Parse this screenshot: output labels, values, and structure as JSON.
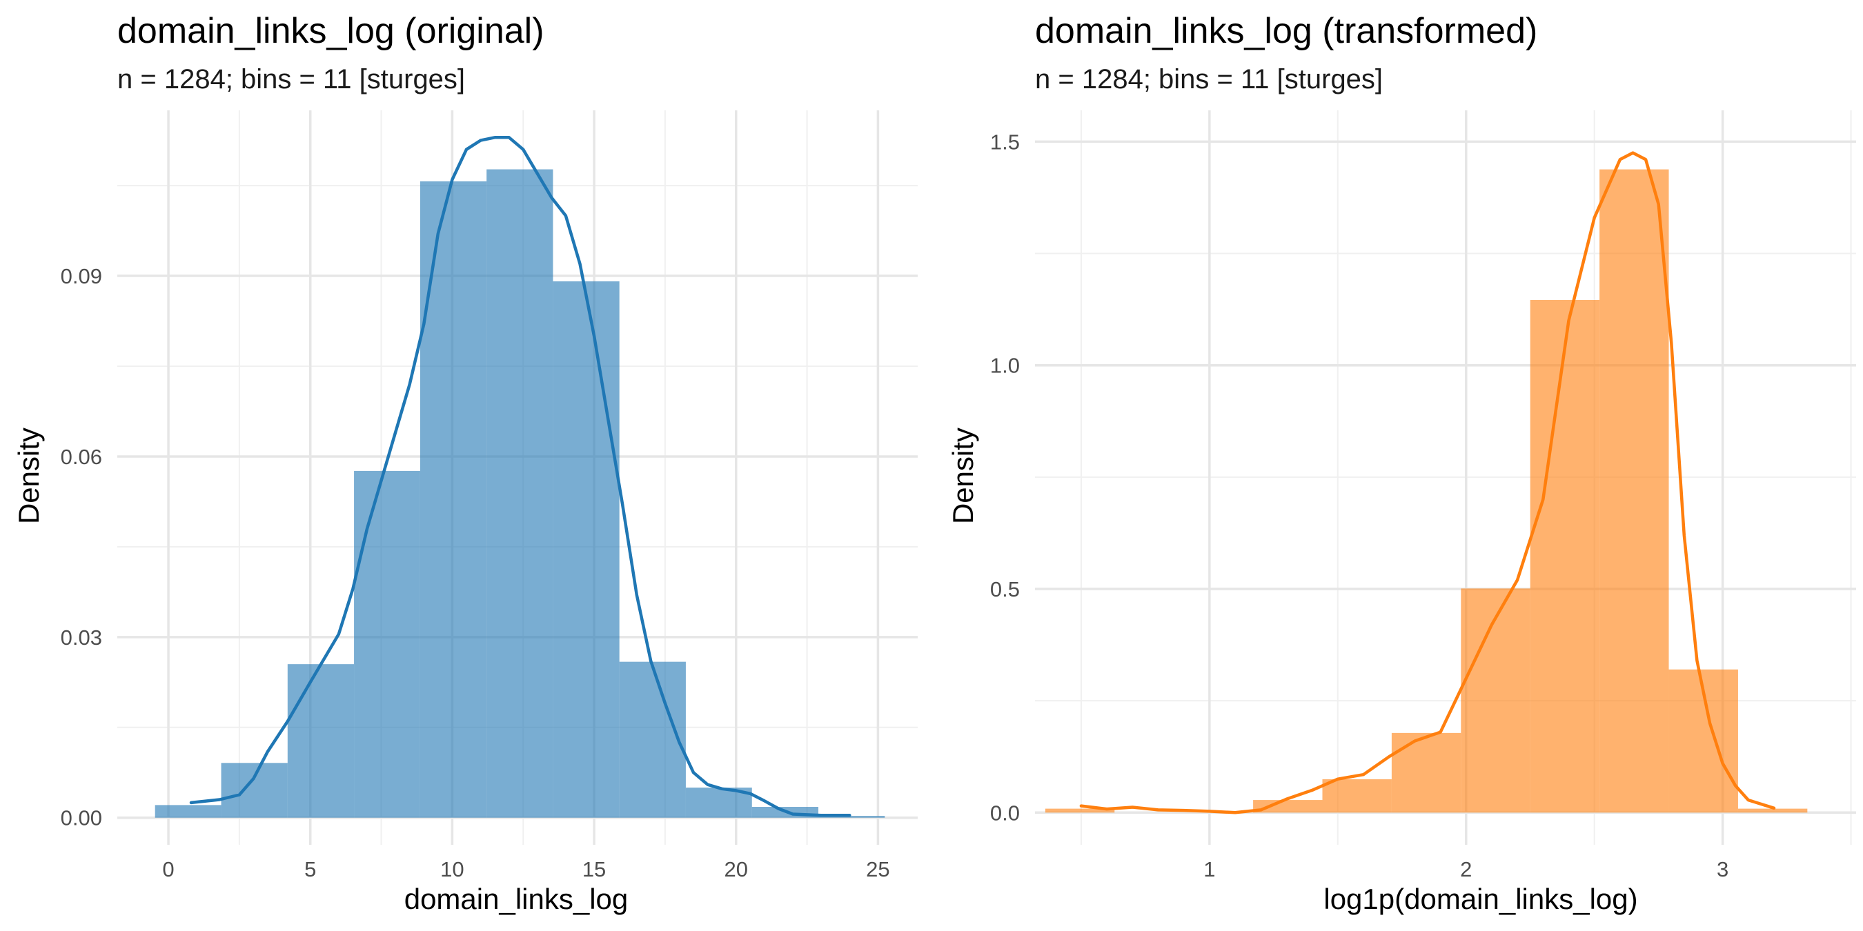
{
  "chart_data": [
    {
      "type": "histogram",
      "title": "domain_links_log (original)",
      "subtitle": "n = 1284; bins = 11 [sturges]",
      "xlabel": "domain_links_log",
      "ylabel": "Density",
      "xlim": [
        -1.8,
        26.4
      ],
      "ylim": [
        -0.0045,
        0.1175
      ],
      "x_ticks": [
        0,
        5,
        10,
        15,
        20,
        25
      ],
      "x_tick_labels": [
        "0",
        "5",
        "10",
        "15",
        "20",
        "25"
      ],
      "x_minor": [
        2.5,
        7.5,
        12.5,
        17.5,
        22.5
      ],
      "y_ticks": [
        0.0,
        0.03,
        0.06,
        0.09
      ],
      "y_tick_labels": [
        "0.00",
        "0.03",
        "0.06",
        "0.09"
      ],
      "y_minor": [
        0.015,
        0.045,
        0.075,
        0.105
      ],
      "grid": true,
      "bar_color": "#1f77b4",
      "curve_color": "#1f77b4",
      "bins": [
        {
          "x0": -0.47,
          "x1": 1.86,
          "density": 0.0021
        },
        {
          "x0": 1.86,
          "x1": 4.2,
          "density": 0.0091
        },
        {
          "x0": 4.2,
          "x1": 6.54,
          "density": 0.0255
        },
        {
          "x0": 6.54,
          "x1": 8.87,
          "density": 0.0576
        },
        {
          "x0": 8.87,
          "x1": 11.21,
          "density": 0.1057
        },
        {
          "x0": 11.21,
          "x1": 13.55,
          "density": 0.1077
        },
        {
          "x0": 13.55,
          "x1": 15.89,
          "density": 0.0891
        },
        {
          "x0": 15.89,
          "x1": 18.23,
          "density": 0.0259
        },
        {
          "x0": 18.23,
          "x1": 20.56,
          "density": 0.005
        },
        {
          "x0": 20.56,
          "x1": 22.9,
          "density": 0.0018
        },
        {
          "x0": 22.9,
          "x1": 25.24,
          "density": 0.0003
        }
      ],
      "density_curve": [
        [
          0.8,
          0.0025
        ],
        [
          1.8,
          0.003
        ],
        [
          2.5,
          0.0038
        ],
        [
          3.0,
          0.0065
        ],
        [
          3.5,
          0.011
        ],
        [
          4.2,
          0.016
        ],
        [
          5.0,
          0.0225
        ],
        [
          6.0,
          0.0305
        ],
        [
          6.5,
          0.038
        ],
        [
          7.0,
          0.048
        ],
        [
          8.0,
          0.064
        ],
        [
          8.5,
          0.072
        ],
        [
          9.0,
          0.082
        ],
        [
          9.5,
          0.097
        ],
        [
          10.0,
          0.106
        ],
        [
          10.5,
          0.111
        ],
        [
          11.0,
          0.1125
        ],
        [
          11.5,
          0.113
        ],
        [
          12.0,
          0.113
        ],
        [
          12.5,
          0.111
        ],
        [
          13.0,
          0.107
        ],
        [
          13.5,
          0.103
        ],
        [
          14.0,
          0.1
        ],
        [
          14.5,
          0.092
        ],
        [
          15.0,
          0.08
        ],
        [
          15.5,
          0.066
        ],
        [
          16.0,
          0.052
        ],
        [
          16.5,
          0.037
        ],
        [
          17.0,
          0.026
        ],
        [
          17.5,
          0.019
        ],
        [
          18.0,
          0.0125
        ],
        [
          18.5,
          0.0075
        ],
        [
          19.0,
          0.0055
        ],
        [
          19.5,
          0.0048
        ],
        [
          20.0,
          0.0045
        ],
        [
          20.5,
          0.004
        ],
        [
          21.0,
          0.0028
        ],
        [
          21.5,
          0.0015
        ],
        [
          22.0,
          0.0006
        ],
        [
          23.0,
          0.0004
        ],
        [
          24.0,
          0.0004
        ]
      ]
    },
    {
      "type": "histogram",
      "title": "domain_links_log (transformed)",
      "subtitle": "n = 1284; bins = 11 [sturges]",
      "xlabel": "log1p(domain_links_log)",
      "ylabel": "Density",
      "xlim": [
        0.32,
        3.52
      ],
      "ylim": [
        -0.072,
        1.57
      ],
      "x_ticks": [
        1,
        2,
        3
      ],
      "x_tick_labels": [
        "1",
        "2",
        "3"
      ],
      "x_minor": [
        0.5,
        1.5,
        2.5,
        3.5
      ],
      "y_ticks": [
        0.0,
        0.5,
        1.0,
        1.5
      ],
      "y_tick_labels": [
        "0.0",
        "0.5",
        "1.0",
        "1.5"
      ],
      "y_minor": [
        0.25,
        0.75,
        1.25
      ],
      "grid": true,
      "bar_color": "#ff7f0e",
      "curve_color": "#ff7f0e",
      "bins": [
        {
          "x0": 0.36,
          "x1": 0.63,
          "density": 0.0088
        },
        {
          "x0": 0.63,
          "x1": 0.9,
          "density": 0.0
        },
        {
          "x0": 0.9,
          "x1": 1.17,
          "density": 0.0
        },
        {
          "x0": 1.17,
          "x1": 1.44,
          "density": 0.0281
        },
        {
          "x0": 1.44,
          "x1": 1.71,
          "density": 0.0745
        },
        {
          "x0": 1.71,
          "x1": 1.98,
          "density": 0.178
        },
        {
          "x0": 1.98,
          "x1": 2.25,
          "density": 0.501
        },
        {
          "x0": 2.25,
          "x1": 2.52,
          "density": 1.146
        },
        {
          "x0": 2.52,
          "x1": 2.79,
          "density": 1.438
        },
        {
          "x0": 2.79,
          "x1": 3.06,
          "density": 0.32
        },
        {
          "x0": 3.06,
          "x1": 3.33,
          "density": 0.0088
        }
      ],
      "density_curve": [
        [
          0.5,
          0.015
        ],
        [
          0.6,
          0.008
        ],
        [
          0.7,
          0.012
        ],
        [
          0.8,
          0.006
        ],
        [
          0.9,
          0.005
        ],
        [
          1.0,
          0.003
        ],
        [
          1.1,
          0.0
        ],
        [
          1.2,
          0.006
        ],
        [
          1.3,
          0.03
        ],
        [
          1.4,
          0.05
        ],
        [
          1.5,
          0.075
        ],
        [
          1.6,
          0.085
        ],
        [
          1.7,
          0.125
        ],
        [
          1.8,
          0.16
        ],
        [
          1.9,
          0.18
        ],
        [
          2.0,
          0.3
        ],
        [
          2.1,
          0.42
        ],
        [
          2.2,
          0.52
        ],
        [
          2.3,
          0.7
        ],
        [
          2.4,
          1.1
        ],
        [
          2.5,
          1.33
        ],
        [
          2.6,
          1.46
        ],
        [
          2.65,
          1.475
        ],
        [
          2.7,
          1.46
        ],
        [
          2.75,
          1.36
        ],
        [
          2.8,
          1.05
        ],
        [
          2.85,
          0.62
        ],
        [
          2.9,
          0.34
        ],
        [
          2.95,
          0.2
        ],
        [
          3.0,
          0.11
        ],
        [
          3.05,
          0.06
        ],
        [
          3.1,
          0.028
        ],
        [
          3.2,
          0.01
        ]
      ]
    }
  ]
}
